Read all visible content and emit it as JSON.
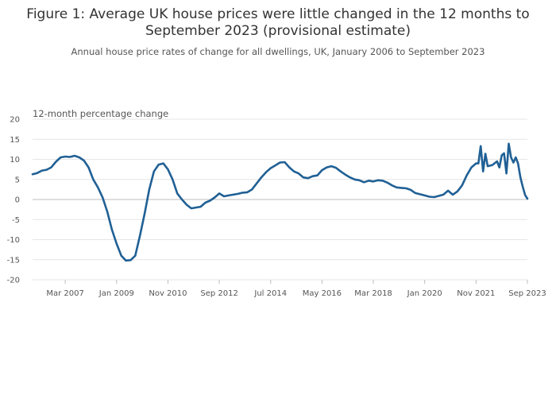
{
  "title": "Figure 1: Average UK house prices were little changed in the 12 months to September 2023 (provisional estimate)",
  "subtitle": "Annual house price rates of change for all dwellings, UK, January 2006 to September 2023",
  "chart_data": {
    "type": "line",
    "title": "Figure 1: Average UK house prices were little changed in the 12 months to September 2023 (provisional estimate)",
    "subtitle": "Annual house price rates of change for all dwellings, UK, January 2006 to September 2023",
    "ylabel": "12-month percentage change",
    "xlabel": "",
    "ylim": [
      -20,
      20
    ],
    "yticks": [
      20,
      15,
      10,
      5,
      0,
      -5,
      -10,
      -15,
      -20
    ],
    "x_range": [
      "2006-01",
      "2023-09"
    ],
    "xtick_labels": [
      "Mar 2007",
      "Jan 2009",
      "Nov 2010",
      "Sep 2012",
      "Jul 2014",
      "May 2016",
      "Mar 2018",
      "Jan 2020",
      "Nov 2021",
      "Sep 2023"
    ],
    "xtick_dates": [
      "2007-03",
      "2009-01",
      "2010-11",
      "2012-09",
      "2014-07",
      "2016-05",
      "2018-03",
      "2020-01",
      "2021-11",
      "2023-09"
    ],
    "grid": true,
    "line_color": "#206095",
    "series": [
      {
        "name": "",
        "points": [
          [
            "2006-01",
            6.3
          ],
          [
            "2006-03",
            6.6
          ],
          [
            "2006-05",
            7.2
          ],
          [
            "2006-07",
            7.4
          ],
          [
            "2006-09",
            8.0
          ],
          [
            "2006-11",
            9.4
          ],
          [
            "2007-01",
            10.5
          ],
          [
            "2007-03",
            10.7
          ],
          [
            "2007-05",
            10.6
          ],
          [
            "2007-07",
            10.9
          ],
          [
            "2007-09",
            10.5
          ],
          [
            "2007-11",
            9.7
          ],
          [
            "2008-01",
            8.0
          ],
          [
            "2008-03",
            5.0
          ],
          [
            "2008-05",
            3.0
          ],
          [
            "2008-07",
            0.5
          ],
          [
            "2008-09",
            -3.0
          ],
          [
            "2008-11",
            -7.5
          ],
          [
            "2009-01",
            -11.0
          ],
          [
            "2009-03",
            -14.0
          ],
          [
            "2009-05",
            -15.2
          ],
          [
            "2009-07",
            -15.1
          ],
          [
            "2009-09",
            -14.0
          ],
          [
            "2009-11",
            -9.0
          ],
          [
            "2010-01",
            -3.5
          ],
          [
            "2010-03",
            2.5
          ],
          [
            "2010-05",
            7.0
          ],
          [
            "2010-07",
            8.7
          ],
          [
            "2010-09",
            9.0
          ],
          [
            "2010-11",
            7.5
          ],
          [
            "2011-01",
            5.0
          ],
          [
            "2011-03",
            1.5
          ],
          [
            "2011-05",
            0.0
          ],
          [
            "2011-07",
            -1.3
          ],
          [
            "2011-09",
            -2.2
          ],
          [
            "2011-11",
            -2.0
          ],
          [
            "2012-01",
            -1.8
          ],
          [
            "2012-03",
            -0.8
          ],
          [
            "2012-05",
            -0.3
          ],
          [
            "2012-07",
            0.5
          ],
          [
            "2012-09",
            1.5
          ],
          [
            "2012-11",
            0.8
          ],
          [
            "2013-01",
            1.0
          ],
          [
            "2013-03",
            1.2
          ],
          [
            "2013-05",
            1.4
          ],
          [
            "2013-07",
            1.7
          ],
          [
            "2013-09",
            1.8
          ],
          [
            "2013-11",
            2.5
          ],
          [
            "2014-01",
            4.0
          ],
          [
            "2014-03",
            5.5
          ],
          [
            "2014-05",
            6.8
          ],
          [
            "2014-07",
            7.8
          ],
          [
            "2014-09",
            8.5
          ],
          [
            "2014-11",
            9.2
          ],
          [
            "2015-01",
            9.3
          ],
          [
            "2015-03",
            8.0
          ],
          [
            "2015-05",
            7.0
          ],
          [
            "2015-07",
            6.5
          ],
          [
            "2015-09",
            5.5
          ],
          [
            "2015-11",
            5.3
          ],
          [
            "2016-01",
            5.8
          ],
          [
            "2016-03",
            6.0
          ],
          [
            "2016-05",
            7.3
          ],
          [
            "2016-07",
            8.0
          ],
          [
            "2016-09",
            8.3
          ],
          [
            "2016-11",
            7.9
          ],
          [
            "2017-01",
            7.0
          ],
          [
            "2017-03",
            6.2
          ],
          [
            "2017-05",
            5.5
          ],
          [
            "2017-07",
            5.0
          ],
          [
            "2017-09",
            4.8
          ],
          [
            "2017-11",
            4.3
          ],
          [
            "2018-01",
            4.7
          ],
          [
            "2018-03",
            4.5
          ],
          [
            "2018-05",
            4.8
          ],
          [
            "2018-07",
            4.7
          ],
          [
            "2018-09",
            4.2
          ],
          [
            "2018-11",
            3.5
          ],
          [
            "2019-01",
            3.0
          ],
          [
            "2019-03",
            2.9
          ],
          [
            "2019-05",
            2.8
          ],
          [
            "2019-07",
            2.4
          ],
          [
            "2019-09",
            1.6
          ],
          [
            "2019-11",
            1.3
          ],
          [
            "2020-01",
            1.0
          ],
          [
            "2020-03",
            0.7
          ],
          [
            "2020-05",
            0.6
          ],
          [
            "2020-07",
            0.9
          ],
          [
            "2020-09",
            1.2
          ],
          [
            "2020-11",
            2.2
          ],
          [
            "2021-01",
            1.2
          ],
          [
            "2021-03",
            2.0
          ],
          [
            "2021-05",
            3.5
          ],
          [
            "2021-07",
            6.0
          ],
          [
            "2021-09",
            8.0
          ],
          [
            "2021-11",
            9.0
          ],
          [
            "2021-12",
            9.0
          ],
          [
            "2022-01",
            13.3
          ],
          [
            "2022-02",
            7.0
          ],
          [
            "2022-03",
            11.4
          ],
          [
            "2022-04",
            8.3
          ],
          [
            "2022-06",
            8.6
          ],
          [
            "2022-08",
            9.5
          ],
          [
            "2022-09",
            8.0
          ],
          [
            "2022-10",
            11.0
          ],
          [
            "2022-11",
            11.5
          ],
          [
            "2022-12",
            6.5
          ],
          [
            "2023-01",
            13.9
          ],
          [
            "2023-02",
            10.5
          ],
          [
            "2023-03",
            9.2
          ],
          [
            "2023-04",
            10.5
          ],
          [
            "2023-05",
            9.0
          ],
          [
            "2023-06",
            5.5
          ],
          [
            "2023-07",
            3.2
          ],
          [
            "2023-08",
            1.1
          ],
          [
            "2023-09",
            0.2
          ]
        ]
      }
    ]
  }
}
